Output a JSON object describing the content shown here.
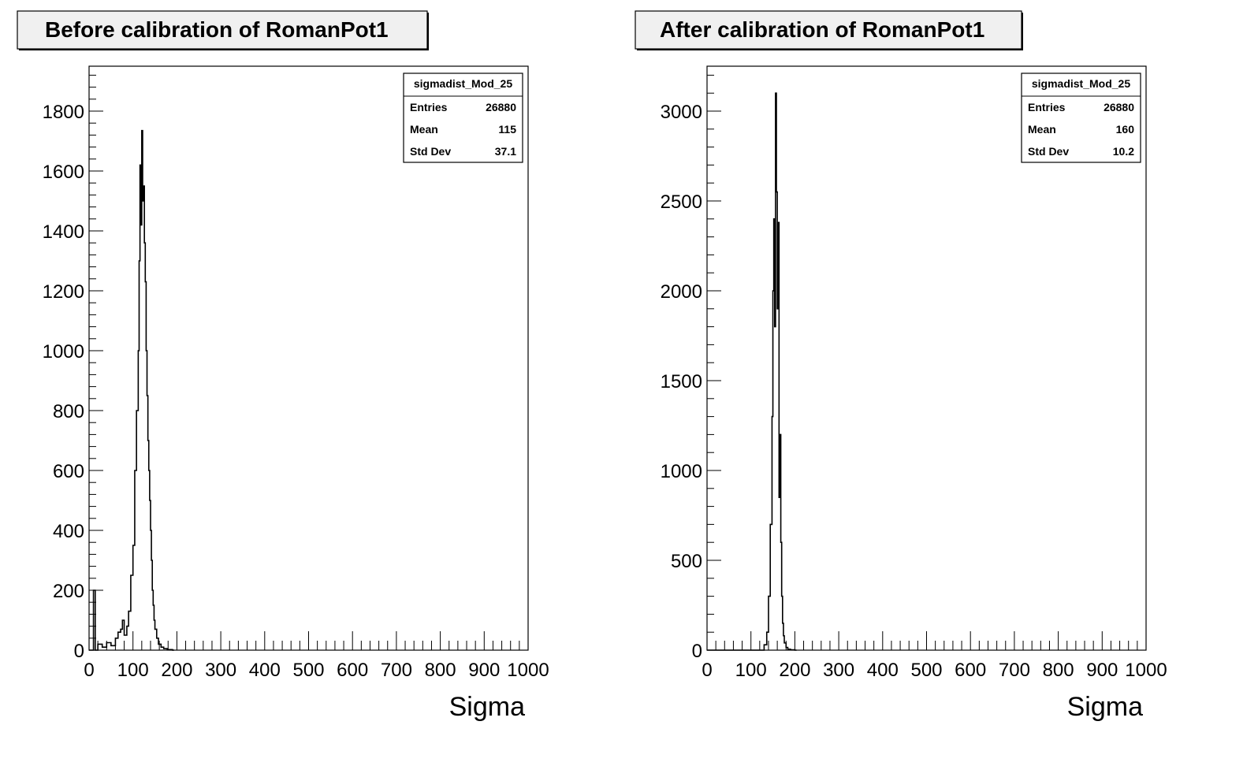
{
  "chart_data": [
    {
      "type": "histogram",
      "title": "Before calibration of RomanPot1",
      "xlabel": "Sigma",
      "ylabel": "",
      "xlim": [
        0,
        1000
      ],
      "ylim": [
        0,
        1950
      ],
      "x_ticks": [
        0,
        100,
        200,
        300,
        400,
        500,
        600,
        700,
        800,
        900,
        1000
      ],
      "y_ticks": [
        0,
        200,
        400,
        600,
        800,
        1000,
        1200,
        1400,
        1600,
        1800
      ],
      "grid": false,
      "legend": "top-right",
      "stats_box": {
        "name": "sigmadist_Mod_25",
        "rows": [
          {
            "label": "Entries",
            "value": "26880"
          },
          {
            "label": "Mean",
            "value": "115"
          },
          {
            "label": "Std Dev",
            "value": "37.1"
          }
        ]
      },
      "series": [
        {
          "x": [
            0,
            10,
            14,
            20,
            30,
            40,
            50,
            60,
            66,
            72,
            76,
            80,
            86,
            90,
            95,
            100,
            104,
            108,
            112,
            114,
            116,
            118,
            120,
            122,
            124,
            126,
            128,
            130,
            132,
            134,
            136,
            138,
            140,
            142,
            144,
            146,
            148,
            150,
            154,
            158,
            164,
            170,
            178,
            190
          ],
          "y": [
            0,
            200,
            0,
            20,
            10,
            25,
            15,
            40,
            60,
            70,
            100,
            50,
            80,
            130,
            250,
            350,
            600,
            800,
            1000,
            1300,
            1620,
            1420,
            1735,
            1500,
            1550,
            1360,
            1230,
            1000,
            850,
            700,
            600,
            500,
            400,
            300,
            200,
            150,
            100,
            70,
            40,
            20,
            10,
            5,
            2,
            0
          ]
        }
      ]
    },
    {
      "type": "histogram",
      "title": "After calibration of RomanPot1",
      "xlabel": "Sigma",
      "ylabel": "",
      "xlim": [
        0,
        1000
      ],
      "ylim": [
        0,
        3250
      ],
      "x_ticks": [
        0,
        100,
        200,
        300,
        400,
        500,
        600,
        700,
        800,
        900,
        1000
      ],
      "y_ticks": [
        0,
        500,
        1000,
        1500,
        2000,
        2500,
        3000
      ],
      "grid": false,
      "legend": "top-right",
      "stats_box": {
        "name": "sigmadist_Mod_25",
        "rows": [
          {
            "label": "Entries",
            "value": "26880"
          },
          {
            "label": "Mean",
            "value": "160"
          },
          {
            "label": "Std Dev",
            "value": "10.2"
          }
        ]
      },
      "series": [
        {
          "x": [
            0,
            120,
            130,
            136,
            140,
            144,
            148,
            150,
            152,
            154,
            156,
            158,
            160,
            162,
            164,
            166,
            168,
            170,
            172,
            174,
            176,
            180,
            184,
            190,
            200
          ],
          "y": [
            0,
            0,
            30,
            100,
            300,
            700,
            1300,
            2000,
            2400,
            1800,
            3100,
            2550,
            1900,
            2380,
            850,
            1200,
            600,
            300,
            150,
            80,
            40,
            15,
            5,
            2,
            0
          ]
        }
      ]
    }
  ]
}
